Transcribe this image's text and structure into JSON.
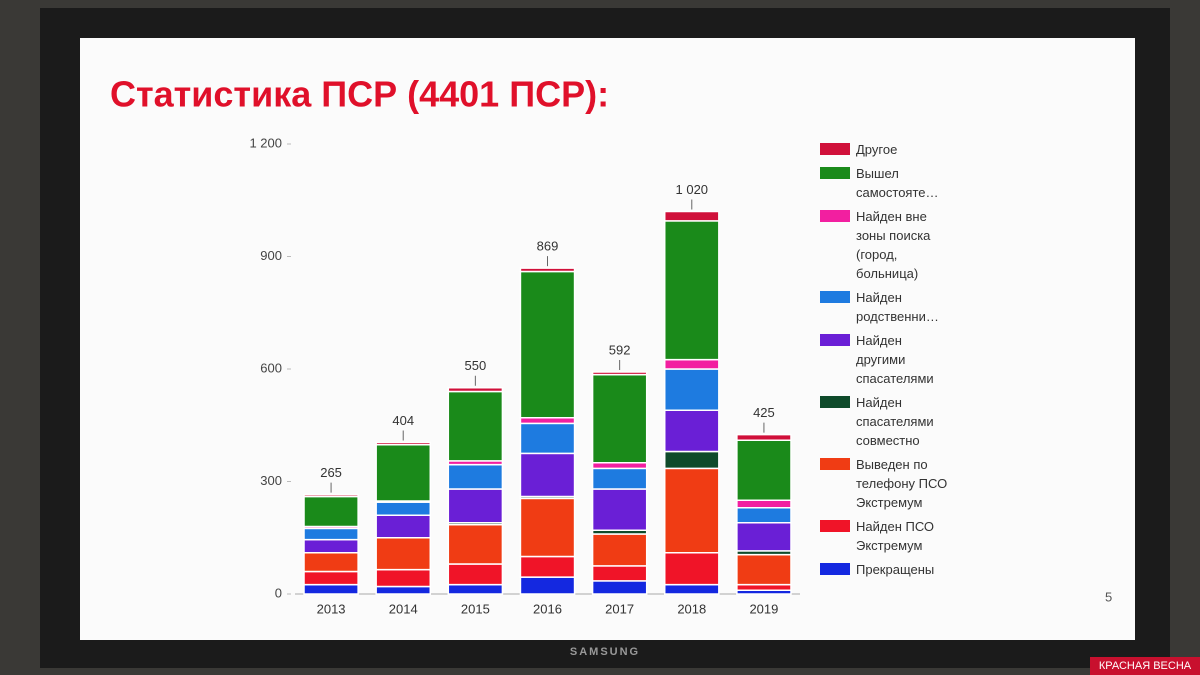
{
  "chart_data": {
    "type": "stacked-bar",
    "title": "Статистика ПСР (4401 ПСР):",
    "categories": [
      "2013",
      "2014",
      "2015",
      "2016",
      "2017",
      "2018",
      "2019"
    ],
    "series": [
      {
        "name": "Прекращены",
        "color": "#1428e0",
        "values": [
          25,
          20,
          25,
          45,
          35,
          25,
          10
        ]
      },
      {
        "name": "Найден ПСО Экстремум",
        "color": "#f01428",
        "values": [
          35,
          45,
          55,
          55,
          40,
          85,
          15
        ]
      },
      {
        "name": "Выведен по телефону ПСО Экстремум",
        "color": "#f03c14",
        "values": [
          50,
          85,
          105,
          155,
          85,
          225,
          80
        ]
      },
      {
        "name": "Найден спасателями совместно",
        "color": "#0e4a2a",
        "values": [
          0,
          0,
          5,
          5,
          10,
          45,
          10
        ]
      },
      {
        "name": "Найден другими спасателями",
        "color": "#6a1fd6",
        "values": [
          35,
          60,
          90,
          115,
          110,
          110,
          75
        ]
      },
      {
        "name": "Найден родственни…",
        "color": "#1e7be0",
        "values": [
          30,
          35,
          65,
          80,
          55,
          110,
          40
        ]
      },
      {
        "name": "Найден вне зоны поиска (город, больница)",
        "color": "#f21fa0",
        "values": [
          5,
          3,
          10,
          15,
          15,
          25,
          20
        ]
      },
      {
        "name": "Вышел самостояте…",
        "color": "#1a8a1a",
        "values": [
          80,
          150,
          185,
          390,
          235,
          370,
          160
        ]
      },
      {
        "name": "Другое",
        "color": "#d0103a",
        "values": [
          5,
          6,
          10,
          9,
          7,
          25,
          15
        ]
      }
    ],
    "totals": {
      "values": [
        265,
        404,
        550,
        869,
        592,
        1020,
        425
      ],
      "value_labels": [
        "265",
        "404",
        "550",
        "869",
        "592",
        "1 020",
        "425"
      ]
    },
    "ylim": [
      0,
      1200
    ],
    "yticks": [
      0,
      300,
      600,
      900,
      {
        "value": 1200,
        "label": "1 200"
      }
    ],
    "grid": false
  },
  "slide_number": "5",
  "tv_brand": "SAMSUNG",
  "watermark": "КРАСНАЯ ВЕСНА"
}
